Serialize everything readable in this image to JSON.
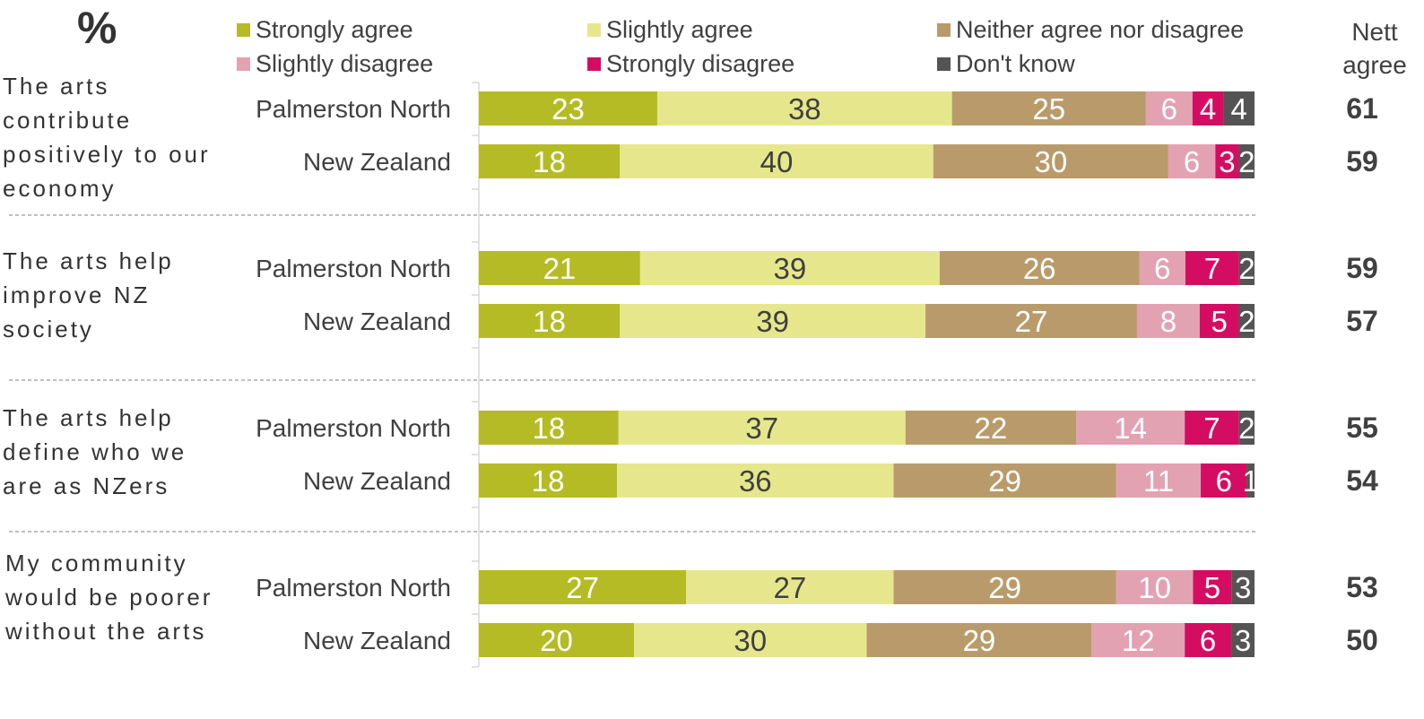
{
  "percent_symbol": "%",
  "nett_header": "Nett agree",
  "colors": {
    "strongly_agree": "#b5bb25",
    "slightly_agree": "#e6e78d",
    "neither": "#b99b6b",
    "slightly_disagree": "#e3a2b2",
    "strongly_disagree": "#d40d63",
    "dont_know": "#545454"
  },
  "chart_data": {
    "type": "bar",
    "orientation": "horizontal-stacked-100",
    "legend": [
      "Strongly agree",
      "Slightly agree",
      "Neither agree nor disagree",
      "Slightly disagree",
      "Strongly disagree",
      "Don't know"
    ],
    "groups": [
      {
        "statement": "The arts contribute positively to our economy",
        "rows": [
          {
            "label": "Palmerston North",
            "values": [
              23,
              38,
              25,
              6,
              4,
              4
            ],
            "nett_agree": 61
          },
          {
            "label": "New Zealand",
            "values": [
              18,
              40,
              30,
              6,
              3,
              2
            ],
            "nett_agree": 59
          }
        ]
      },
      {
        "statement": "The arts help improve NZ society",
        "rows": [
          {
            "label": "Palmerston North",
            "values": [
              21,
              39,
              26,
              6,
              7,
              2
            ],
            "nett_agree": 59
          },
          {
            "label": "New Zealand",
            "values": [
              18,
              39,
              27,
              8,
              5,
              2
            ],
            "nett_agree": 57
          }
        ]
      },
      {
        "statement": "The arts help define who we are as NZers",
        "rows": [
          {
            "label": "Palmerston North",
            "values": [
              18,
              37,
              22,
              14,
              7,
              2
            ],
            "nett_agree": 55
          },
          {
            "label": "New Zealand",
            "values": [
              18,
              36,
              29,
              11,
              6,
              1
            ],
            "nett_agree": 54
          }
        ]
      },
      {
        "statement": "My community would be poorer without the arts",
        "rows": [
          {
            "label": "Palmerston North",
            "values": [
              27,
              27,
              29,
              10,
              5,
              3
            ],
            "nett_agree": 53
          },
          {
            "label": "New Zealand",
            "values": [
              20,
              30,
              29,
              12,
              6,
              3
            ],
            "nett_agree": 50
          }
        ]
      }
    ]
  }
}
